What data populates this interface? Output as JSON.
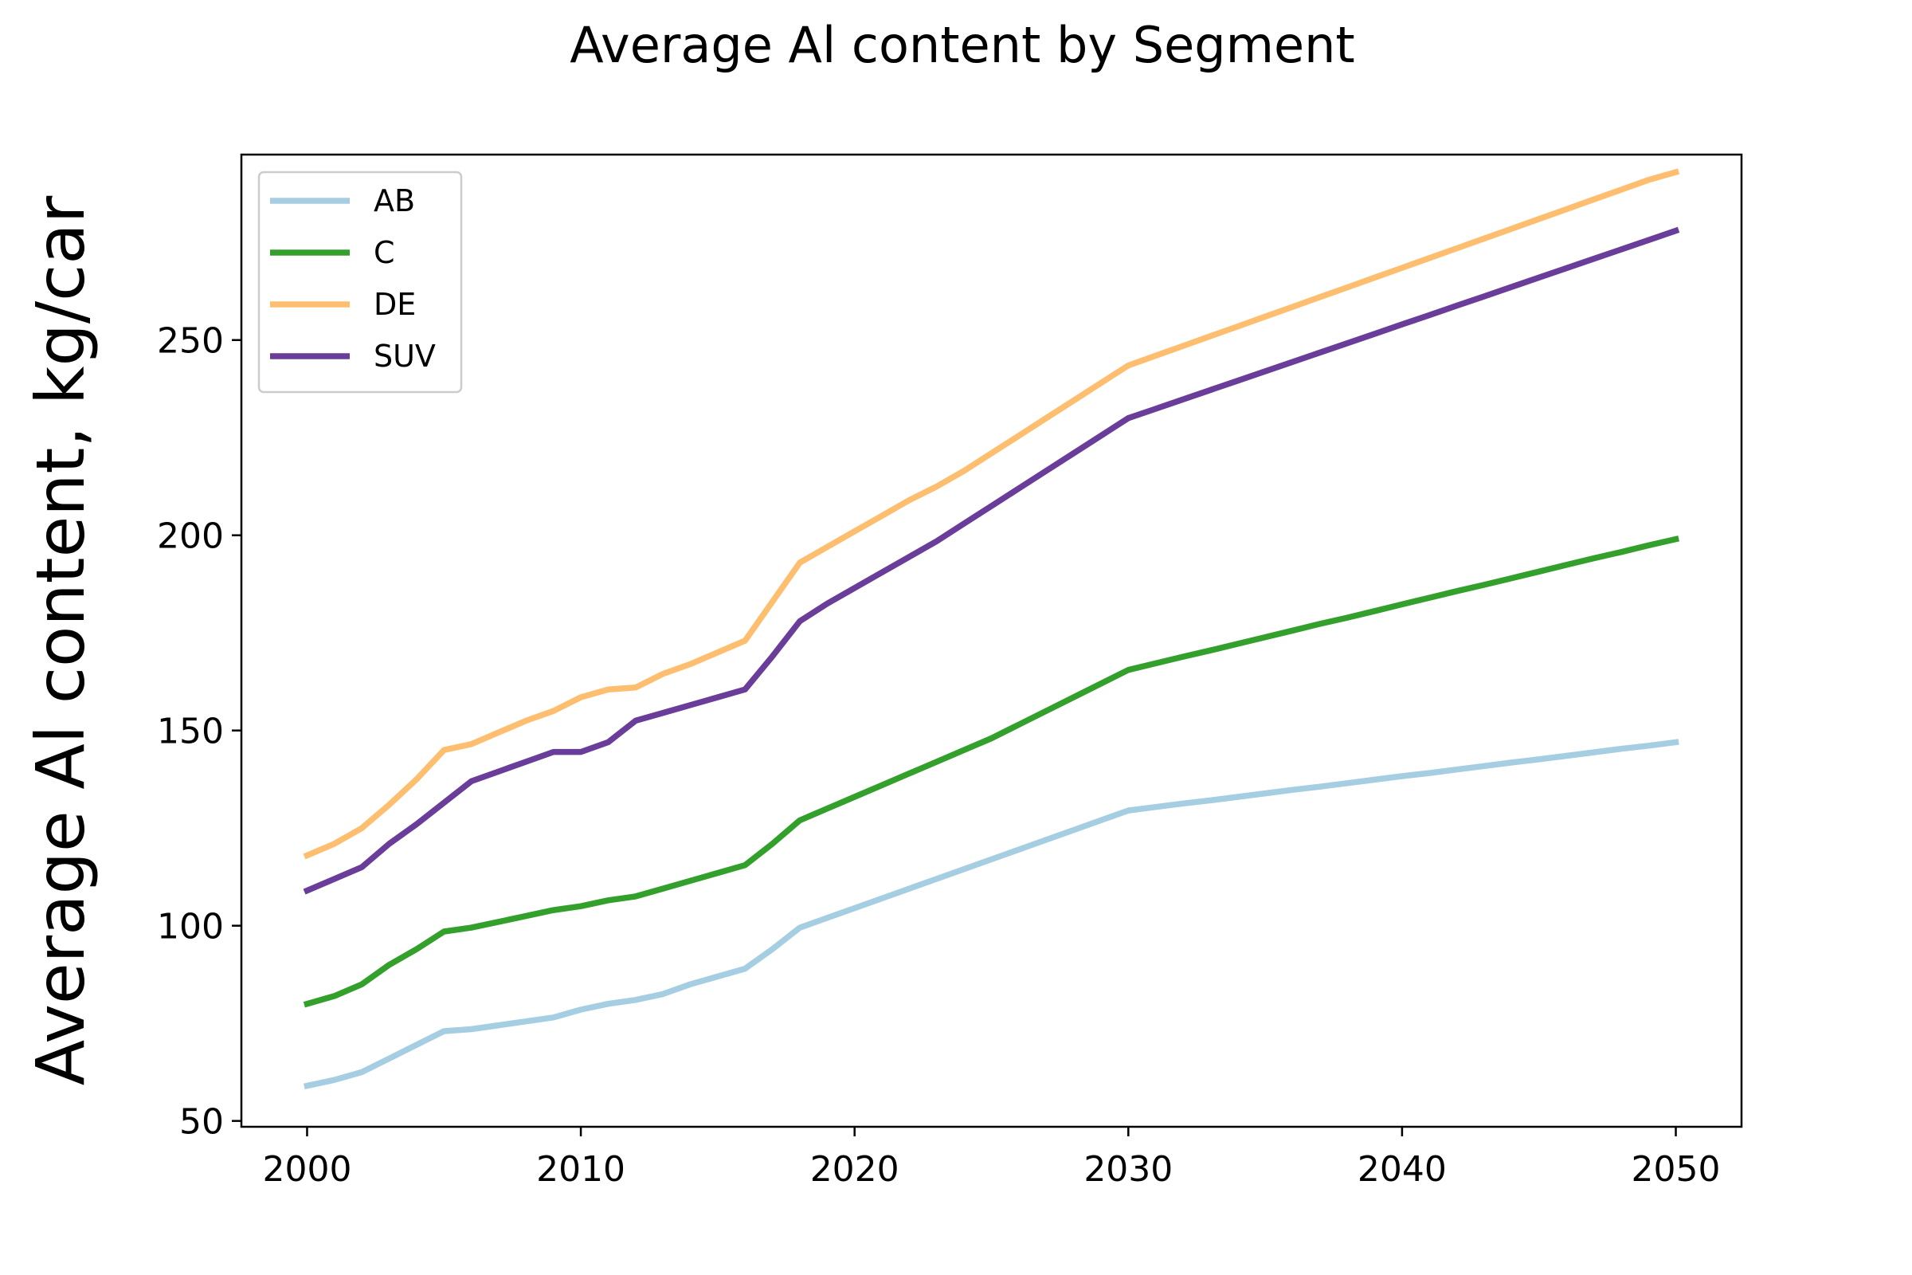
{
  "chart_data": {
    "type": "line",
    "title": "Average Al content by Segment",
    "xlabel": "",
    "ylabel": "Average Al content, kg/car",
    "xlim": [
      1997.6,
      2052.4
    ],
    "ylim": [
      48.5,
      297.5
    ],
    "xticks": [
      2000,
      2010,
      2020,
      2030,
      2040,
      2050
    ],
    "yticks": [
      50,
      100,
      150,
      200,
      250
    ],
    "grid": false,
    "legend_position": "top-left",
    "x": [
      2000,
      2001,
      2002,
      2003,
      2004,
      2005,
      2006,
      2007,
      2008,
      2009,
      2010,
      2011,
      2012,
      2013,
      2014,
      2015,
      2016,
      2017,
      2018,
      2019,
      2020,
      2021,
      2022,
      2023,
      2024,
      2025,
      2026,
      2027,
      2028,
      2029,
      2030,
      2031,
      2032,
      2033,
      2034,
      2035,
      2036,
      2037,
      2038,
      2039,
      2040,
      2041,
      2042,
      2043,
      2044,
      2045,
      2046,
      2047,
      2048,
      2049,
      2050
    ],
    "series": [
      {
        "name": "AB",
        "color": "#a6cee3",
        "values": [
          59,
          60.5,
          62.5,
          66,
          69.5,
          73,
          73.5,
          74.5,
          75.5,
          76.5,
          78.5,
          80,
          81,
          82.5,
          85,
          87,
          89,
          94,
          99.5,
          102,
          104.5,
          107,
          109.5,
          112,
          114.5,
          117,
          119.5,
          122,
          124.5,
          127,
          129.5,
          130.4,
          131.3,
          132.1,
          133,
          133.9,
          134.8,
          135.6,
          136.5,
          137.4,
          138.3,
          139.1,
          140,
          140.9,
          141.8,
          142.6,
          143.5,
          144.4,
          145.3,
          146.1,
          147
        ]
      },
      {
        "name": "C",
        "color": "#33a02c",
        "values": [
          80,
          82,
          85,
          90,
          94,
          98.5,
          99.5,
          101,
          102.5,
          104,
          105,
          106.5,
          107.5,
          109.5,
          111.5,
          113.5,
          115.5,
          121,
          127,
          130,
          133,
          136,
          139,
          142,
          145,
          148,
          151.5,
          155,
          158.5,
          162,
          165.5,
          167.2,
          168.9,
          170.5,
          172.2,
          173.9,
          175.6,
          177.3,
          178.9,
          180.6,
          182.3,
          184,
          185.7,
          187.3,
          189,
          190.7,
          192.4,
          194.1,
          195.7,
          197.4,
          199
        ]
      },
      {
        "name": "DE",
        "color": "#fdbf6f",
        "values": [
          118,
          121,
          125,
          131,
          137.5,
          145,
          146.5,
          149.5,
          152.5,
          155,
          158.5,
          160.5,
          161,
          164.5,
          167,
          170,
          173,
          183,
          193,
          197,
          201,
          205,
          209,
          212.5,
          216.5,
          221,
          225.5,
          230,
          234.5,
          239,
          243.5,
          246,
          248.5,
          251,
          253.5,
          256,
          258.5,
          261,
          263.5,
          266,
          268.5,
          271,
          273.5,
          276,
          278.5,
          281,
          283.5,
          286,
          288.5,
          291,
          293
        ]
      },
      {
        "name": "SUV",
        "color": "#6a3d9a",
        "values": [
          109,
          112,
          115,
          121,
          126,
          131.5,
          137,
          139.5,
          142,
          144.5,
          144.5,
          147,
          152.5,
          154.5,
          156.5,
          158.5,
          160.5,
          169,
          178,
          182.5,
          186.5,
          190.5,
          194.5,
          198.5,
          203,
          207.5,
          212,
          216.5,
          221,
          225.5,
          230,
          232.4,
          234.8,
          237.2,
          239.6,
          242,
          244.4,
          246.8,
          249.2,
          251.6,
          254,
          256.4,
          258.8,
          261.2,
          263.6,
          266,
          268.4,
          270.8,
          273.2,
          275.6,
          278
        ]
      }
    ]
  }
}
